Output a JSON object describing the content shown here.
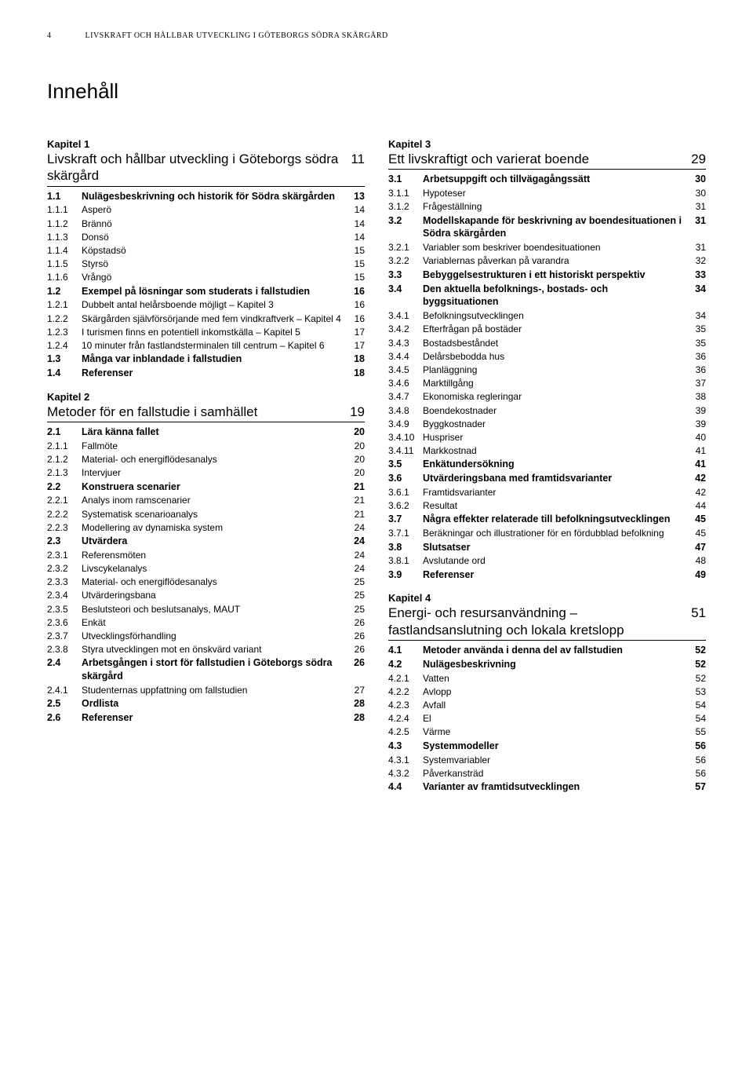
{
  "header": {
    "page_number": "4",
    "running_title": "LIVSKRAFT OCH HÅLLBAR UTVECKLING I GÖTEBORGS SÖDRA SKÄRGÅRD"
  },
  "main_heading": "Innehåll",
  "columns": [
    {
      "chapters": [
        {
          "label": "Kapitel 1",
          "title": "Livskraft och hållbar utveckling i Göteborgs södra skärgård",
          "page": "11",
          "rows": [
            {
              "n": "1.1",
              "t": "Nulägesbeskrivning och historik för Södra skärgården",
              "p": "13",
              "b": true
            },
            {
              "n": "1.1.1",
              "t": "Asperö",
              "p": "14",
              "b": false
            },
            {
              "n": "1.1.2",
              "t": "Brännö",
              "p": "14",
              "b": false
            },
            {
              "n": "1.1.3",
              "t": "Donsö",
              "p": "14",
              "b": false
            },
            {
              "n": "1.1.4",
              "t": "Köpstadsö",
              "p": "15",
              "b": false
            },
            {
              "n": "1.1.5",
              "t": "Styrsö",
              "p": "15",
              "b": false
            },
            {
              "n": "1.1.6",
              "t": "Vrångö",
              "p": "15",
              "b": false
            },
            {
              "n": "1.2",
              "t": "Exempel på lösningar som studerats i fallstudien",
              "p": "16",
              "b": true
            },
            {
              "n": "1.2.1",
              "t": "Dubbelt antal helårsboende möjligt – Kapitel 3",
              "p": "16",
              "b": false
            },
            {
              "n": "1.2.2",
              "t": "Skärgården självförsörjande med fem vindkraftverk – Kapitel 4",
              "p": "16",
              "b": false
            },
            {
              "n": "1.2.3",
              "t": "I turismen finns en potentiell inkomstkälla – Kapitel 5",
              "p": "17",
              "b": false
            },
            {
              "n": "1.2.4",
              "t": "10 minuter från fastlandsterminalen till centrum – Kapitel 6",
              "p": "17",
              "b": false
            },
            {
              "n": "1.3",
              "t": "Många var inblandade i fallstudien",
              "p": "18",
              "b": true
            },
            {
              "n": "1.4",
              "t": "Referenser",
              "p": "18",
              "b": true
            }
          ]
        },
        {
          "label": "Kapitel 2",
          "title": "Metoder för en fallstudie i samhället",
          "page": "19",
          "rows": [
            {
              "n": "2.1",
              "t": "Lära känna fallet",
              "p": "20",
              "b": true
            },
            {
              "n": "2.1.1",
              "t": "Fallmöte",
              "p": "20",
              "b": false
            },
            {
              "n": "2.1.2",
              "t": "Material- och energiflödesanalys",
              "p": "20",
              "b": false
            },
            {
              "n": "2.1.3",
              "t": "Intervjuer",
              "p": "20",
              "b": false
            },
            {
              "n": "2.2",
              "t": "Konstruera scenarier",
              "p": "21",
              "b": true
            },
            {
              "n": "2.2.1",
              "t": "Analys inom ramscenarier",
              "p": "21",
              "b": false
            },
            {
              "n": "2.2.2",
              "t": "Systematisk scenarioanalys",
              "p": "21",
              "b": false
            },
            {
              "n": "2.2.3",
              "t": "Modellering av dynamiska system",
              "p": "24",
              "b": false
            },
            {
              "n": "2.3",
              "t": "Utvärdera",
              "p": "24",
              "b": true
            },
            {
              "n": "2.3.1",
              "t": "Referensmöten",
              "p": "24",
              "b": false
            },
            {
              "n": "2.3.2",
              "t": "Livscykelanalys",
              "p": "24",
              "b": false
            },
            {
              "n": "2.3.3",
              "t": "Material- och energiflödesanalys",
              "p": "25",
              "b": false
            },
            {
              "n": "2.3.4",
              "t": "Utvärderingsbana",
              "p": "25",
              "b": false
            },
            {
              "n": "2.3.5",
              "t": "Beslutsteori och beslutsanalys, MAUT",
              "p": "25",
              "b": false
            },
            {
              "n": "2.3.6",
              "t": "Enkät",
              "p": "26",
              "b": false
            },
            {
              "n": "2.3.7",
              "t": "Utvecklingsförhandling",
              "p": "26",
              "b": false
            },
            {
              "n": "2.3.8",
              "t": "Styra utvecklingen mot en önskvärd variant",
              "p": "26",
              "b": false
            },
            {
              "n": "2.4",
              "t": "Arbetsgången i stort för fallstudien i Göteborgs södra skärgård",
              "p": "26",
              "b": true
            },
            {
              "n": "2.4.1",
              "t": "Studenternas uppfattning om fallstudien",
              "p": "27",
              "b": false
            },
            {
              "n": "2.5",
              "t": "Ordlista",
              "p": "28",
              "b": true
            },
            {
              "n": "2.6",
              "t": "Referenser",
              "p": "28",
              "b": true
            }
          ]
        }
      ]
    },
    {
      "chapters": [
        {
          "label": "Kapitel 3",
          "title": "Ett livskraftigt och varierat boende",
          "page": "29",
          "rows": [
            {
              "n": "3.1",
              "t": "Arbetsuppgift och tillvägagångssätt",
              "p": "30",
              "b": true
            },
            {
              "n": "3.1.1",
              "t": "Hypoteser",
              "p": "30",
              "b": false
            },
            {
              "n": "3.1.2",
              "t": "Frågeställning",
              "p": "31",
              "b": false
            },
            {
              "n": "3.2",
              "t": "Modellskapande för beskrivning av boendesituationen i Södra skärgården",
              "p": "31",
              "b": true
            },
            {
              "n": "3.2.1",
              "t": "Variabler som beskriver boendesituationen",
              "p": "31",
              "b": false
            },
            {
              "n": "3.2.2",
              "t": "Variablernas påverkan på varandra",
              "p": "32",
              "b": false
            },
            {
              "n": "3.3",
              "t": "Bebyggelsestrukturen i ett historiskt perspektiv",
              "p": "33",
              "b": true
            },
            {
              "n": "3.4",
              "t": "Den aktuella befolknings-, bostads- och byggsituationen",
              "p": "34",
              "b": true
            },
            {
              "n": "3.4.1",
              "t": "Befolkningsutvecklingen",
              "p": "34",
              "b": false
            },
            {
              "n": "3.4.2",
              "t": "Efterfrågan på bostäder",
              "p": "35",
              "b": false
            },
            {
              "n": "3.4.3",
              "t": "Bostadsbeståndet",
              "p": "35",
              "b": false
            },
            {
              "n": "3.4.4",
              "t": "Delårsbebodda hus",
              "p": "36",
              "b": false
            },
            {
              "n": "3.4.5",
              "t": "Planläggning",
              "p": "36",
              "b": false
            },
            {
              "n": "3.4.6",
              "t": "Marktillgång",
              "p": "37",
              "b": false
            },
            {
              "n": "3.4.7",
              "t": "Ekonomiska regleringar",
              "p": "38",
              "b": false
            },
            {
              "n": "3.4.8",
              "t": "Boendekostnader",
              "p": "39",
              "b": false
            },
            {
              "n": "3.4.9",
              "t": "Byggkostnader",
              "p": "39",
              "b": false
            },
            {
              "n": "3.4.10",
              "t": "Huspriser",
              "p": "40",
              "b": false
            },
            {
              "n": "3.4.11",
              "t": "Markkostnad",
              "p": "41",
              "b": false
            },
            {
              "n": "3.5",
              "t": "Enkätundersökning",
              "p": "41",
              "b": true
            },
            {
              "n": "3.6",
              "t": "Utvärderingsbana med framtidsvarianter",
              "p": "42",
              "b": true
            },
            {
              "n": "3.6.1",
              "t": "Framtidsvarianter",
              "p": "42",
              "b": false
            },
            {
              "n": "3.6.2",
              "t": "Resultat",
              "p": "44",
              "b": false
            },
            {
              "n": "3.7",
              "t": "Några effekter relaterade till befolkningsutvecklingen",
              "p": "45",
              "b": true
            },
            {
              "n": "3.7.1",
              "t": "Beräkningar och illustrationer för en fördubblad befolkning",
              "p": "45",
              "b": false
            },
            {
              "n": "3.8",
              "t": "Slutsatser",
              "p": "47",
              "b": true
            },
            {
              "n": "3.8.1",
              "t": "Avslutande ord",
              "p": "48",
              "b": false
            },
            {
              "n": "3.9",
              "t": "Referenser",
              "p": "49",
              "b": true
            }
          ]
        },
        {
          "label": "Kapitel 4",
          "title": "Energi- och resursanvändning – fastlandsanslutning och lokala kretslopp",
          "page": "51",
          "rows": [
            {
              "n": "4.1",
              "t": "Metoder använda i denna del av fallstudien",
              "p": "52",
              "b": true
            },
            {
              "n": "4.2",
              "t": "Nulägesbeskrivning",
              "p": "52",
              "b": true
            },
            {
              "n": "4.2.1",
              "t": "Vatten",
              "p": "52",
              "b": false
            },
            {
              "n": "4.2.2",
              "t": "Avlopp",
              "p": "53",
              "b": false
            },
            {
              "n": "4.2.3",
              "t": "Avfall",
              "p": "54",
              "b": false
            },
            {
              "n": "4.2.4",
              "t": "El",
              "p": "54",
              "b": false
            },
            {
              "n": "4.2.5",
              "t": "Värme",
              "p": "55",
              "b": false
            },
            {
              "n": "4.3",
              "t": "Systemmodeller",
              "p": "56",
              "b": true
            },
            {
              "n": "4.3.1",
              "t": "Systemvariabler",
              "p": "56",
              "b": false
            },
            {
              "n": "4.3.2",
              "t": "Påverkansträd",
              "p": "56",
              "b": false
            },
            {
              "n": "4.4",
              "t": "Varianter av framtidsutvecklingen",
              "p": "57",
              "b": true
            }
          ]
        }
      ]
    }
  ]
}
